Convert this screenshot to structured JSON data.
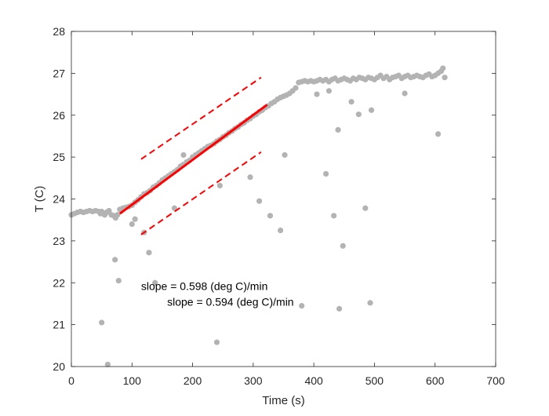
{
  "chart_data": {
    "type": "scatter",
    "title": "",
    "xlabel": "Time (s)",
    "ylabel": "T (C)",
    "xlim": [
      0,
      700
    ],
    "ylim": [
      20,
      28
    ],
    "xticks": [
      0,
      100,
      200,
      300,
      400,
      500,
      600,
      700
    ],
    "yticks": [
      20,
      21,
      22,
      23,
      24,
      25,
      26,
      27,
      28
    ],
    "grid": false,
    "colors": {
      "points": "#b3b3b3",
      "fit": "#ff0000",
      "axes": "#262626"
    },
    "series": [
      {
        "type": "scatter",
        "points": [
          [
            0,
            23.62
          ],
          [
            5,
            23.65
          ],
          [
            10,
            23.68
          ],
          [
            15,
            23.7
          ],
          [
            20,
            23.68
          ],
          [
            25,
            23.7
          ],
          [
            30,
            23.72
          ],
          [
            35,
            23.7
          ],
          [
            40,
            23.72
          ],
          [
            45,
            23.7
          ],
          [
            48,
            23.65
          ],
          [
            50,
            23.7
          ],
          [
            55,
            23.62
          ],
          [
            58,
            23.68
          ],
          [
            62,
            23.72
          ],
          [
            66,
            23.62
          ],
          [
            70,
            23.6
          ],
          [
            73,
            23.55
          ],
          [
            76,
            23.62
          ],
          [
            80,
            23.75
          ],
          [
            85,
            23.78
          ],
          [
            90,
            23.8
          ],
          [
            95,
            23.82
          ],
          [
            100,
            23.85
          ],
          [
            105,
            23.92
          ],
          [
            110,
            23.98
          ],
          [
            115,
            24.05
          ],
          [
            120,
            24.12
          ],
          [
            125,
            24.15
          ],
          [
            130,
            24.2
          ],
          [
            135,
            24.28
          ],
          [
            140,
            24.32
          ],
          [
            145,
            24.38
          ],
          [
            150,
            24.45
          ],
          [
            155,
            24.5
          ],
          [
            160,
            24.55
          ],
          [
            165,
            24.6
          ],
          [
            170,
            24.65
          ],
          [
            175,
            24.7
          ],
          [
            180,
            24.78
          ],
          [
            185,
            24.82
          ],
          [
            190,
            24.88
          ],
          [
            195,
            24.92
          ],
          [
            200,
            25.0
          ],
          [
            205,
            25.05
          ],
          [
            210,
            25.1
          ],
          [
            215,
            25.15
          ],
          [
            220,
            25.2
          ],
          [
            225,
            25.25
          ],
          [
            230,
            25.28
          ],
          [
            235,
            25.32
          ],
          [
            240,
            25.38
          ],
          [
            245,
            25.42
          ],
          [
            250,
            25.48
          ],
          [
            255,
            25.52
          ],
          [
            260,
            25.58
          ],
          [
            265,
            25.62
          ],
          [
            270,
            25.68
          ],
          [
            275,
            25.72
          ],
          [
            280,
            25.78
          ],
          [
            285,
            25.82
          ],
          [
            290,
            25.88
          ],
          [
            295,
            25.92
          ],
          [
            300,
            25.98
          ],
          [
            305,
            26.02
          ],
          [
            310,
            26.08
          ],
          [
            315,
            26.12
          ],
          [
            320,
            26.18
          ],
          [
            325,
            26.22
          ],
          [
            330,
            26.28
          ],
          [
            335,
            26.32
          ],
          [
            340,
            26.38
          ],
          [
            345,
            26.42
          ],
          [
            350,
            26.45
          ],
          [
            355,
            26.48
          ],
          [
            360,
            26.52
          ],
          [
            365,
            26.58
          ],
          [
            370,
            26.65
          ],
          [
            375,
            26.78
          ],
          [
            380,
            26.8
          ],
          [
            385,
            26.82
          ],
          [
            390,
            26.8
          ],
          [
            395,
            26.82
          ],
          [
            400,
            26.8
          ],
          [
            405,
            26.82
          ],
          [
            410,
            26.85
          ],
          [
            415,
            26.82
          ],
          [
            420,
            26.85
          ],
          [
            425,
            26.8
          ],
          [
            430,
            26.85
          ],
          [
            435,
            26.88
          ],
          [
            440,
            26.82
          ],
          [
            445,
            26.85
          ],
          [
            450,
            26.88
          ],
          [
            455,
            26.85
          ],
          [
            460,
            26.82
          ],
          [
            465,
            26.88
          ],
          [
            470,
            26.85
          ],
          [
            475,
            26.9
          ],
          [
            480,
            26.88
          ],
          [
            485,
            26.85
          ],
          [
            490,
            26.9
          ],
          [
            495,
            26.88
          ],
          [
            500,
            26.85
          ],
          [
            505,
            26.9
          ],
          [
            510,
            26.95
          ],
          [
            515,
            26.88
          ],
          [
            520,
            26.92
          ],
          [
            525,
            26.85
          ],
          [
            530,
            26.9
          ],
          [
            535,
            26.92
          ],
          [
            540,
            26.95
          ],
          [
            545,
            26.88
          ],
          [
            550,
            26.92
          ],
          [
            555,
            26.95
          ],
          [
            560,
            26.9
          ],
          [
            565,
            26.92
          ],
          [
            570,
            26.95
          ],
          [
            575,
            26.92
          ],
          [
            580,
            26.9
          ],
          [
            585,
            26.95
          ],
          [
            590,
            26.98
          ],
          [
            595,
            26.92
          ],
          [
            600,
            26.95
          ],
          [
            605,
            27.0
          ],
          [
            610,
            27.05
          ],
          [
            613,
            27.12
          ],
          [
            616,
            26.9
          ],
          [
            50,
            21.05
          ],
          [
            60,
            20.05
          ],
          [
            72,
            22.55
          ],
          [
            78,
            22.05
          ],
          [
            100,
            23.4
          ],
          [
            105,
            23.52
          ],
          [
            120,
            23.2
          ],
          [
            128,
            22.72
          ],
          [
            138,
            22.0
          ],
          [
            170,
            23.78
          ],
          [
            185,
            25.05
          ],
          [
            240,
            20.58
          ],
          [
            245,
            24.32
          ],
          [
            295,
            24.52
          ],
          [
            310,
            23.95
          ],
          [
            328,
            23.6
          ],
          [
            345,
            23.25
          ],
          [
            352,
            25.05
          ],
          [
            380,
            21.45
          ],
          [
            405,
            26.5
          ],
          [
            420,
            24.6
          ],
          [
            425,
            26.58
          ],
          [
            433,
            23.6
          ],
          [
            440,
            25.65
          ],
          [
            442,
            21.38
          ],
          [
            448,
            22.88
          ],
          [
            462,
            26.32
          ],
          [
            474,
            26.02
          ],
          [
            485,
            23.78
          ],
          [
            493,
            21.52
          ],
          [
            495,
            26.12
          ],
          [
            550,
            26.52
          ],
          [
            605,
            25.55
          ]
        ]
      },
      {
        "type": "line",
        "style": "solid",
        "points": [
          [
            80,
            23.65
          ],
          [
            323,
            26.25
          ]
        ]
      },
      {
        "type": "line",
        "style": "dashed",
        "points": [
          [
            115,
            24.95
          ],
          [
            313,
            26.9
          ]
        ]
      },
      {
        "type": "line",
        "style": "dashed",
        "points": [
          [
            115,
            23.15
          ],
          [
            313,
            25.12
          ]
        ]
      }
    ],
    "annotations": [
      {
        "text": "slope =   0.598 (deg C)/min",
        "x": 115,
        "y": 21.92
      },
      {
        "text": "slope =   0.594 (deg C)/min",
        "x": 158,
        "y": 21.55
      }
    ]
  }
}
